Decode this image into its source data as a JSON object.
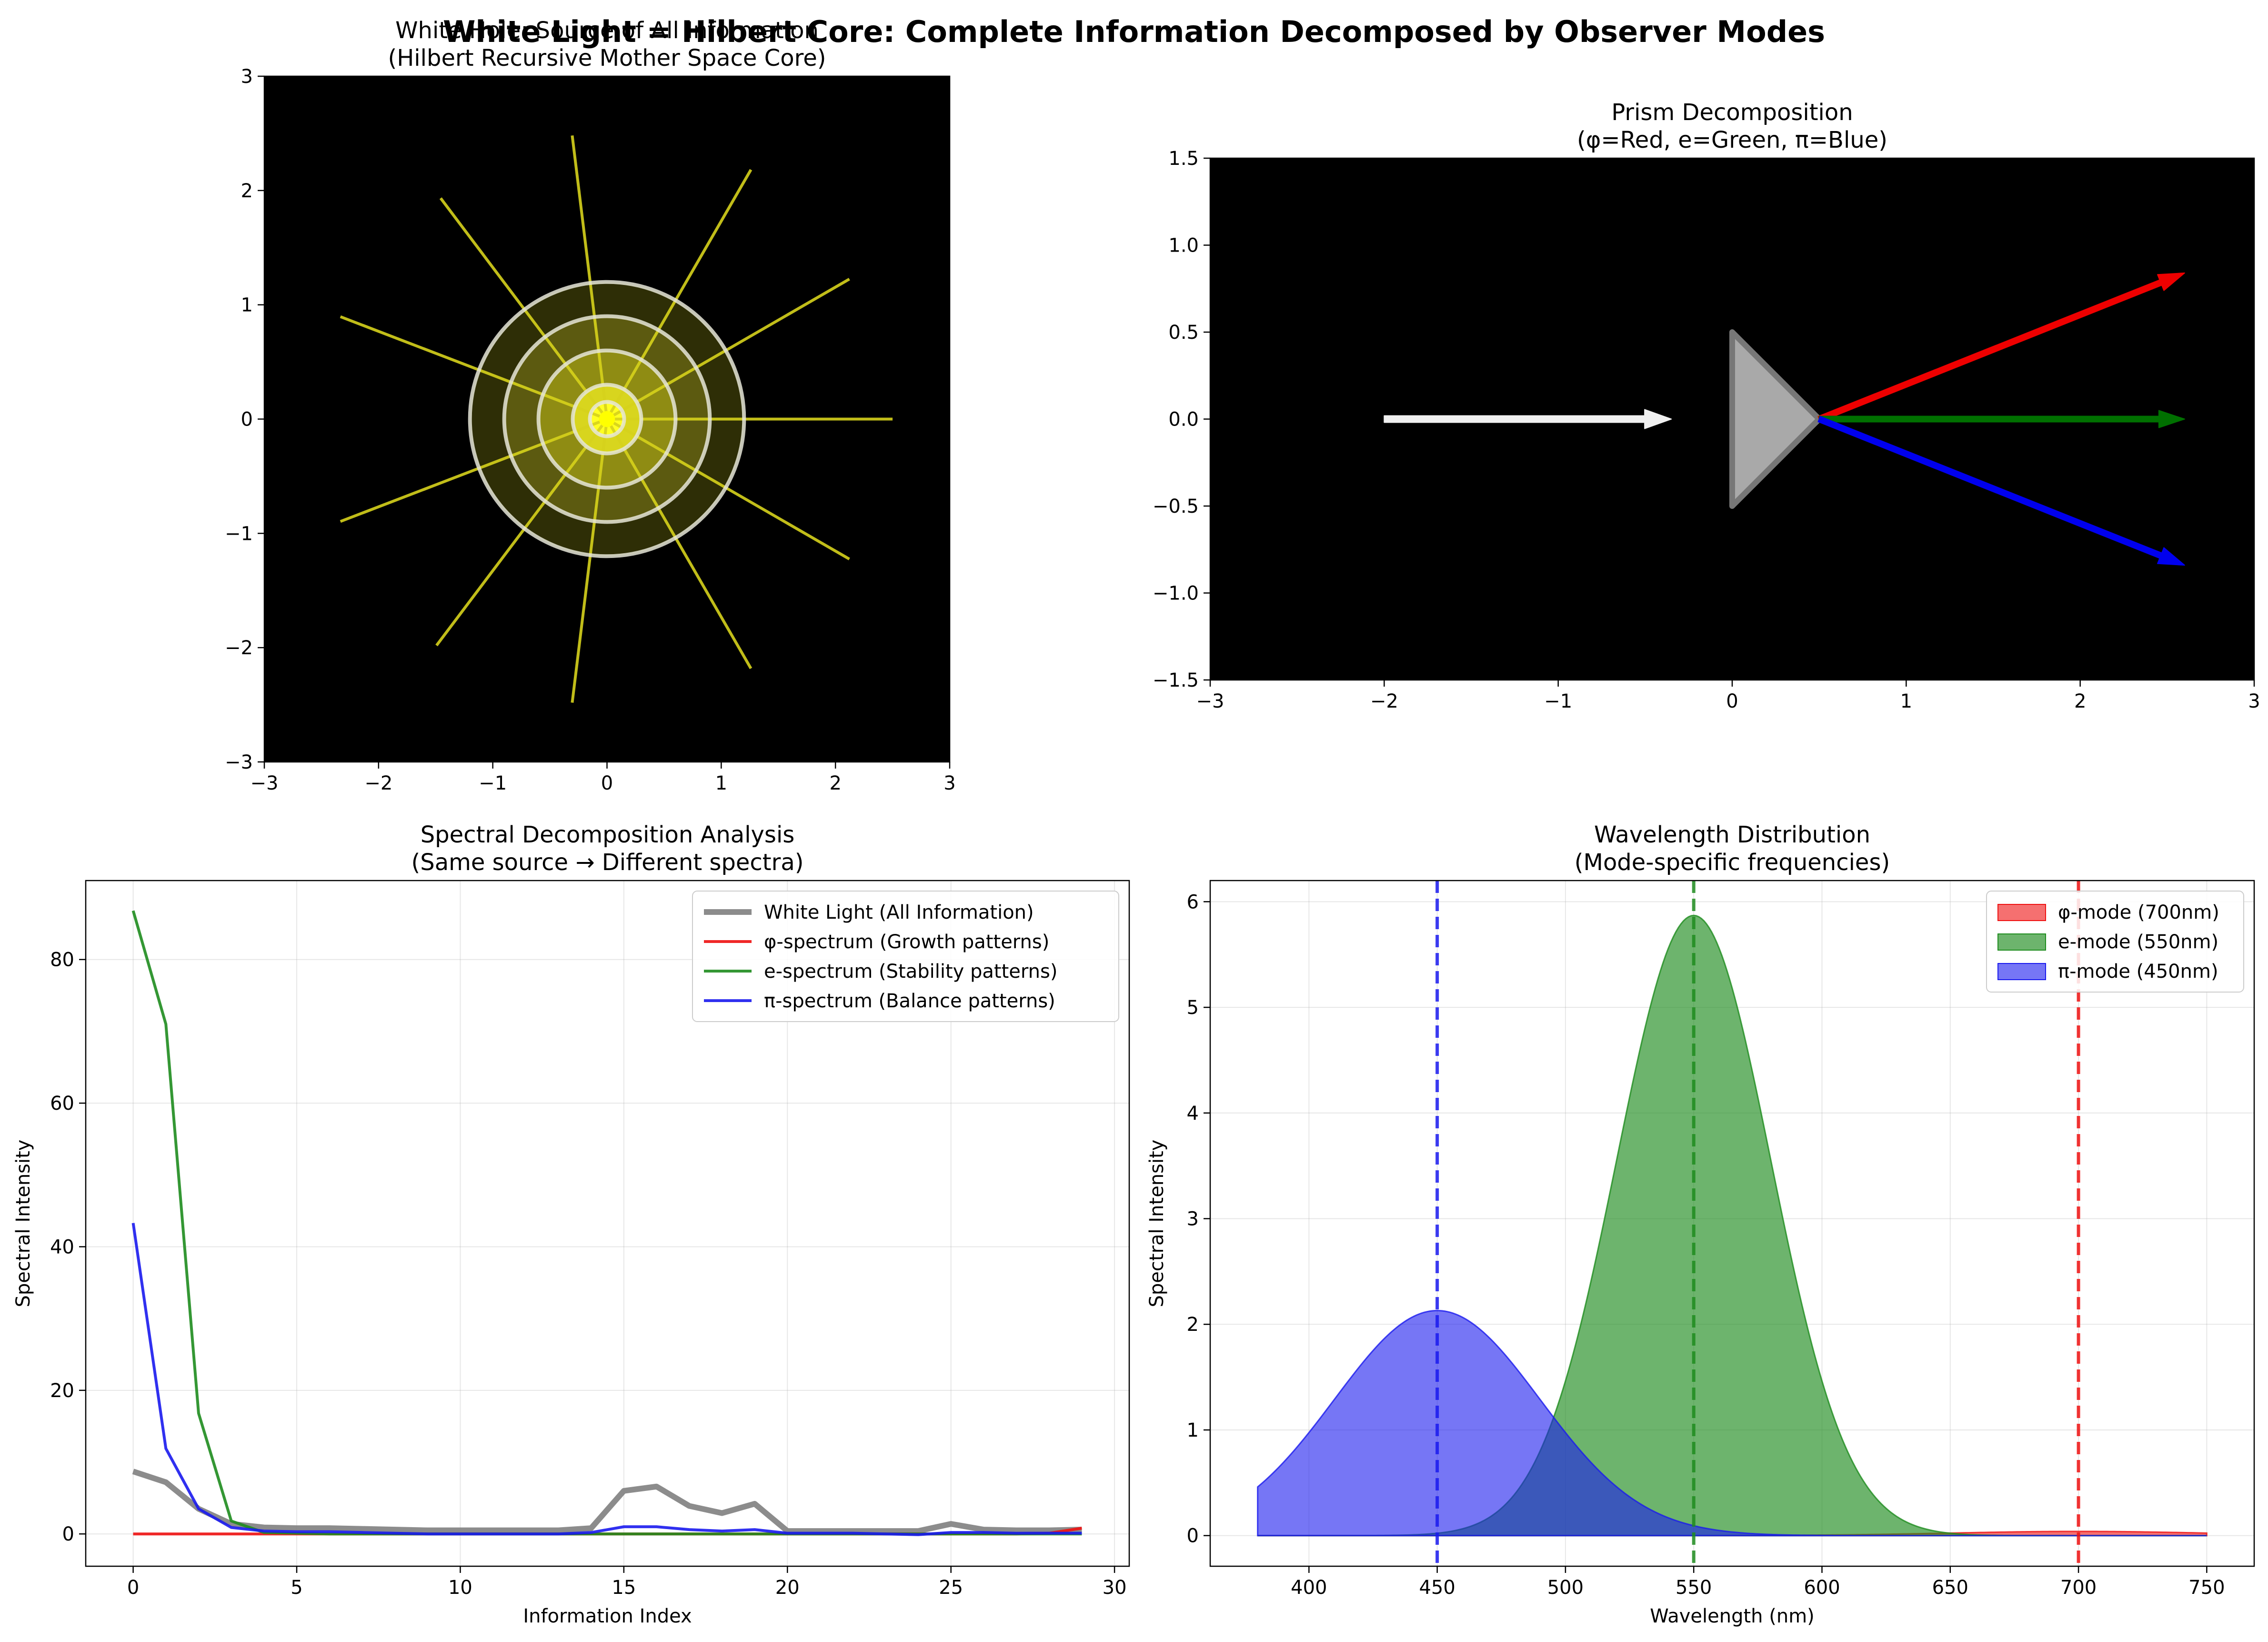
{
  "figure": {
    "suptitle": "White Light = Hilbert Core: Complete Information Decomposed by Observer Modes"
  },
  "chart_data": [
    {
      "id": "white-hole",
      "type": "diagram",
      "title": [
        "White Hole: Source of All Information",
        "(Hilbert Recursive Mother Space Core)"
      ],
      "xlim": [
        -3,
        3
      ],
      "ylim": [
        -3,
        3
      ],
      "xticks": [
        -3,
        -2,
        -1,
        0,
        1,
        2,
        3
      ],
      "yticks": [
        -3,
        -2,
        -1,
        0,
        1,
        2,
        3
      ],
      "background": "#000000",
      "rings": [
        1.2,
        0.9,
        0.6,
        0.3,
        0.15
      ],
      "ray_angles_deg": [
        0,
        30,
        60,
        97,
        127,
        159,
        201,
        233,
        263,
        300,
        330
      ],
      "ray_lengths": [
        2.5,
        2.45,
        2.52,
        2.5,
        2.42,
        2.5,
        2.5,
        2.48,
        2.5,
        2.52,
        2.45
      ],
      "ray_color": "#d6d21c",
      "core_color": "#ffff00"
    },
    {
      "id": "prism",
      "type": "diagram",
      "title": [
        "Prism Decomposition",
        "(φ=Red, e=Green, π=Blue)"
      ],
      "xlim": [
        -3,
        3
      ],
      "ylim": [
        -1.5,
        1.5
      ],
      "xticks": [
        -3,
        -2,
        -1,
        0,
        1,
        2,
        3
      ],
      "yticks": [
        -1.5,
        -1.0,
        -0.5,
        0.0,
        0.5,
        1.0,
        1.5
      ],
      "background": "#000000",
      "incoming": {
        "from": [
          -2,
          0
        ],
        "to": [
          -0.35,
          0
        ],
        "color": "#f0f0f0"
      },
      "prism_vertices": [
        [
          0,
          0.5
        ],
        [
          0.5,
          0
        ],
        [
          0,
          -0.5
        ]
      ],
      "prism_color": "#a9a9a9",
      "outgoing": [
        {
          "from": [
            0.5,
            0
          ],
          "to": [
            2.6,
            0.84
          ],
          "color": "#ee0000"
        },
        {
          "from": [
            0.5,
            0
          ],
          "to": [
            2.6,
            0
          ],
          "color": "#007000"
        },
        {
          "from": [
            0.5,
            0
          ],
          "to": [
            2.6,
            -0.84
          ],
          "color": "#0000ee"
        }
      ]
    },
    {
      "id": "spectral",
      "type": "line",
      "title": [
        "Spectral Decomposition Analysis",
        "(Same source → Different spectra)"
      ],
      "xlabel": "Information Index",
      "ylabel": "Spectral Intensity",
      "xlim": [
        -1.45,
        30.45
      ],
      "ylim": [
        -4.5,
        91
      ],
      "xticks": [
        0,
        5,
        10,
        15,
        20,
        25,
        30
      ],
      "yticks": [
        0,
        20,
        40,
        60,
        80
      ],
      "grid": true,
      "legend": "top-right",
      "x": [
        0,
        1,
        2,
        3,
        4,
        5,
        6,
        7,
        8,
        9,
        10,
        11,
        12,
        13,
        14,
        15,
        16,
        17,
        18,
        19,
        20,
        21,
        22,
        23,
        24,
        25,
        26,
        27,
        28,
        29
      ],
      "series": [
        {
          "name": "White Light (All Information)",
          "color": "#808080",
          "width": 3,
          "alpha": 0.9,
          "values": [
            8.7,
            7.2,
            3.5,
            1.4,
            0.9,
            0.8,
            0.8,
            0.7,
            0.6,
            0.5,
            0.5,
            0.5,
            0.5,
            0.5,
            0.8,
            6.0,
            6.6,
            3.9,
            2.9,
            4.2,
            0.4,
            0.4,
            0.4,
            0.4,
            0.4,
            1.4,
            0.6,
            0.5,
            0.5,
            0.6
          ]
        },
        {
          "name": "φ-spectrum (Growth patterns)",
          "color": "#ee1111",
          "width": 1.5,
          "alpha": 0.9,
          "values": [
            0,
            0,
            0,
            0,
            0,
            0,
            0,
            0,
            0,
            0,
            0,
            0,
            0,
            0,
            0,
            0,
            0,
            0,
            0,
            0,
            0,
            0,
            0,
            0,
            0,
            0,
            0,
            0,
            0.1,
            0.8
          ]
        },
        {
          "name": "e-spectrum (Stability patterns)",
          "color": "#1e8c1e",
          "width": 1.5,
          "alpha": 0.9,
          "values": [
            86.8,
            71.0,
            16.8,
            1.8,
            0.2,
            0.1,
            0,
            0,
            0,
            0,
            0,
            0,
            0,
            0,
            0,
            0,
            0,
            0,
            0,
            0,
            0,
            0,
            0,
            0,
            0,
            0,
            0,
            0,
            0,
            0
          ]
        },
        {
          "name": "π-spectrum (Balance patterns)",
          "color": "#1a1aee",
          "width": 1.5,
          "alpha": 0.9,
          "values": [
            43.3,
            11.9,
            3.5,
            0.9,
            0.4,
            0.3,
            0.3,
            0.2,
            0.1,
            0,
            0,
            0,
            0,
            0,
            0.2,
            1.0,
            1.0,
            0.6,
            0.4,
            0.6,
            0.1,
            0.1,
            0.1,
            0,
            -0.1,
            0.2,
            0.2,
            0.1,
            0.1,
            0.1
          ]
        }
      ]
    },
    {
      "id": "wavelength",
      "type": "area",
      "title": [
        "Wavelength Distribution",
        "(Mode-specific frequencies)"
      ],
      "xlabel": "Wavelength (nm)",
      "ylabel": "Spectral Intensity",
      "xlim": [
        361.5,
        768.5
      ],
      "ylim": [
        -0.29,
        6.2
      ],
      "xticks": [
        400,
        450,
        500,
        550,
        600,
        650,
        700,
        750
      ],
      "yticks": [
        0,
        1,
        2,
        3,
        4,
        5,
        6
      ],
      "grid": true,
      "legend": "top-right",
      "range": [
        380,
        750
      ],
      "series": [
        {
          "name": "φ-mode (700nm)",
          "color": "#ee1111",
          "alpha": 0.6,
          "center": 700,
          "peak": 0.04,
          "sigma": 50
        },
        {
          "name": "e-mode (550nm)",
          "color": "#1e8c1e",
          "alpha": 0.65,
          "center": 550,
          "peak": 5.87,
          "sigma": 30
        },
        {
          "name": "π-mode (450nm)",
          "color": "#1a1aee",
          "alpha": 0.6,
          "center": 450,
          "peak": 2.13,
          "sigma": 40
        }
      ],
      "vlines": [
        {
          "x": 450,
          "color": "#1a1aee"
        },
        {
          "x": 550,
          "color": "#1e8c1e"
        },
        {
          "x": 700,
          "color": "#ee1111"
        }
      ]
    }
  ]
}
